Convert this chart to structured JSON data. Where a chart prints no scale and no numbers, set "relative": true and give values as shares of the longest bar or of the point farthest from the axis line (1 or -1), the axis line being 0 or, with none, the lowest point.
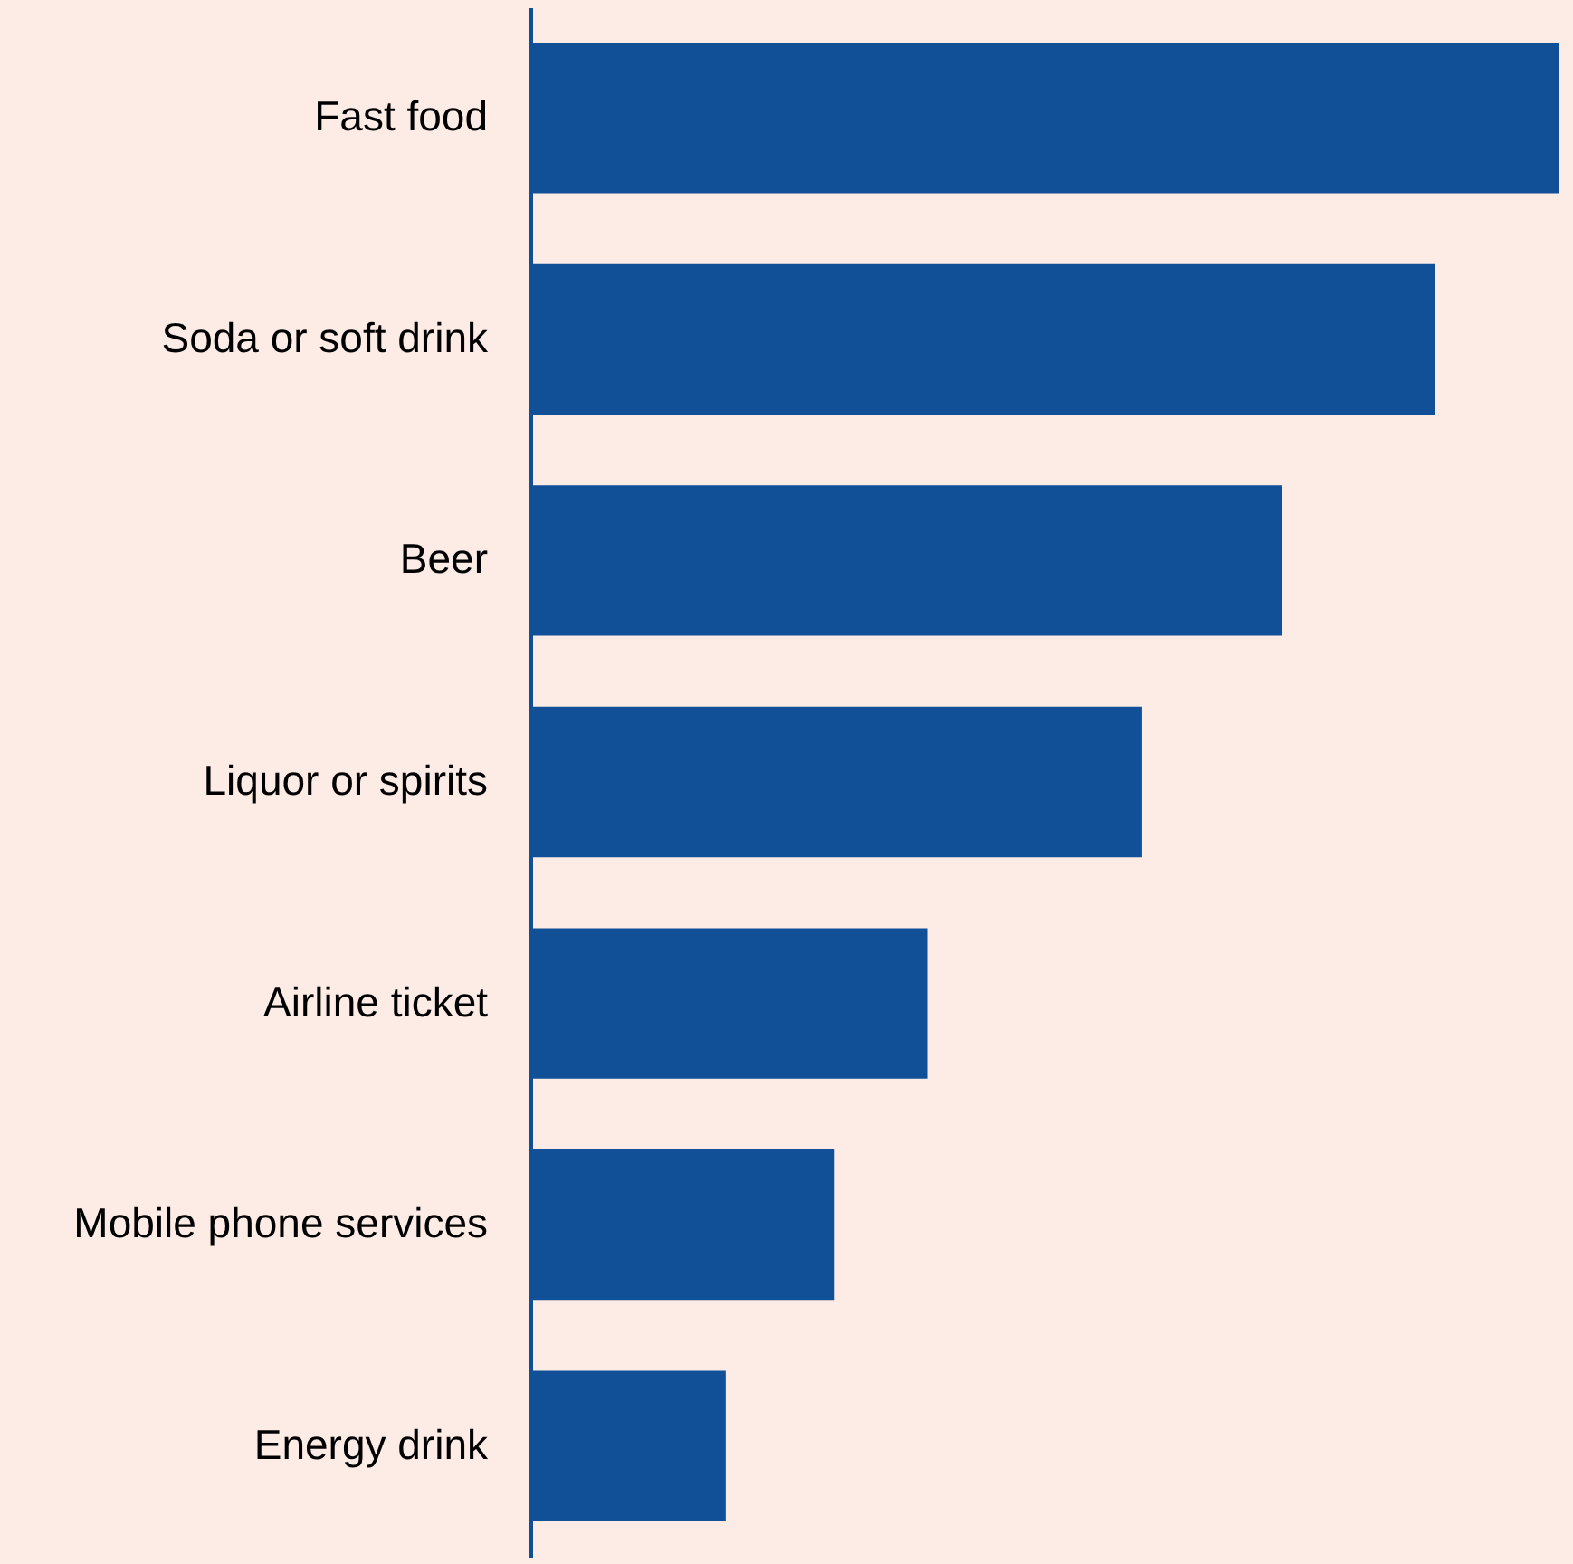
{
  "chart_data": {
    "type": "bar",
    "orientation": "horizontal",
    "relative": true,
    "categories": [
      "Fast food",
      "Soda or soft drink",
      "Beer",
      "Liquor or spirits",
      "Airline ticket",
      "Mobile phone services",
      "Energy drink"
    ],
    "values": [
      1,
      0.88,
      0.731,
      0.595,
      0.386,
      0.296,
      0.19
    ],
    "color": "#114f96"
  }
}
